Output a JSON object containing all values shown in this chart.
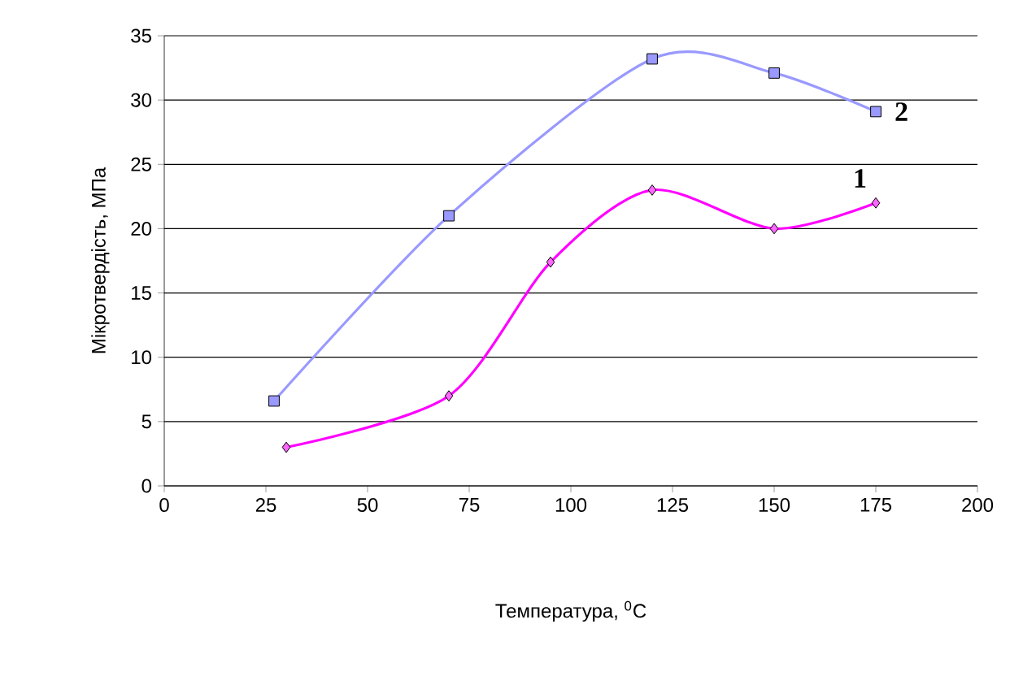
{
  "chart_data": {
    "type": "line",
    "xlabel": "Температура, $^{0}$C",
    "ylabel": "Мікротвердість, МПа",
    "xlim": [
      0,
      200
    ],
    "xticks": [
      0,
      25,
      50,
      75,
      100,
      125,
      150,
      175,
      200
    ],
    "ylim": [
      0,
      35
    ],
    "yticks": [
      0,
      5,
      10,
      15,
      20,
      25,
      30,
      35
    ],
    "grid": "y",
    "series": [
      {
        "name": "1",
        "color": "#ff00ff",
        "marker": "diamond",
        "x": [
          30,
          70,
          95,
          120,
          150,
          175
        ],
        "values": [
          3,
          7,
          17.4,
          23,
          20,
          22
        ]
      },
      {
        "name": "2",
        "color": "#9999ff",
        "marker": "square",
        "x": [
          27,
          70,
          120,
          150,
          175
        ],
        "values": [
          6.6,
          21,
          33.2,
          32.1,
          29.1
        ]
      }
    ]
  }
}
